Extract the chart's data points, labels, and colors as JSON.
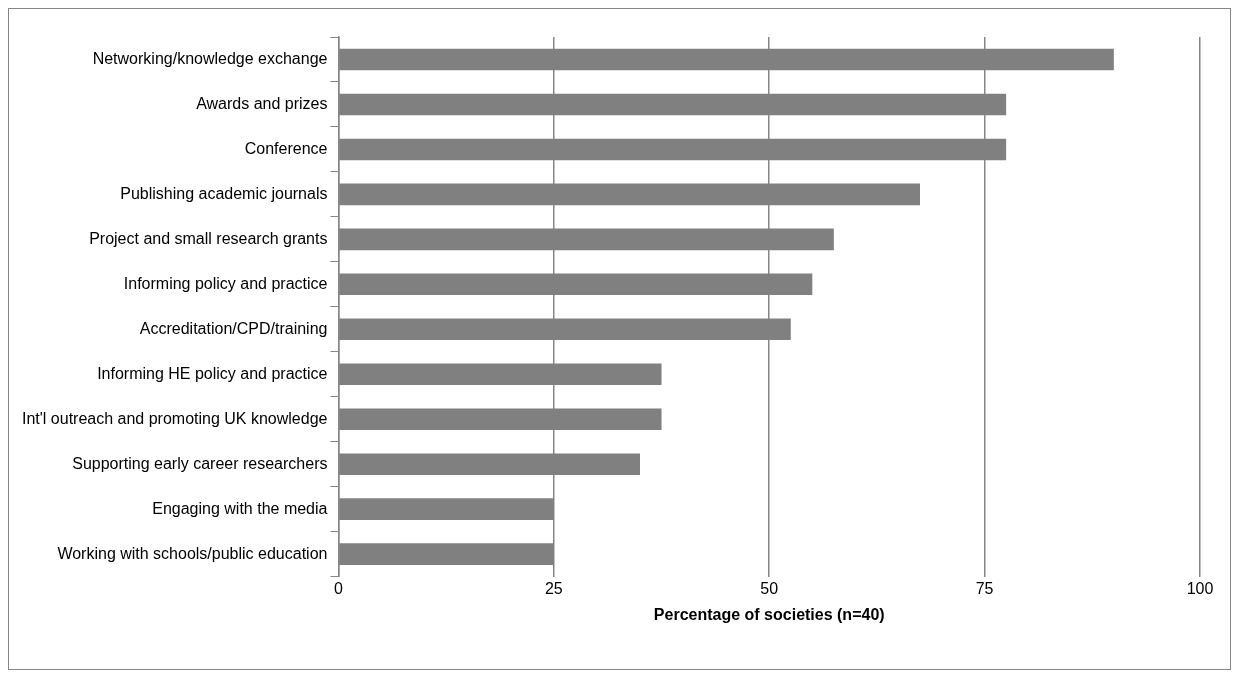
{
  "chart_data": {
    "type": "bar",
    "orientation": "horizontal",
    "categories": [
      "Networking/knowledge exchange",
      "Awards and prizes",
      "Conference",
      "Publishing academic journals",
      "Project and small research grants",
      "Informing policy and practice",
      "Accreditation/CPD/training",
      "Informing HE policy and practice",
      "Int'l outreach and promoting UK knowledge",
      "Supporting early career researchers",
      "Engaging with the media",
      "Working with schools/public education"
    ],
    "values": [
      90,
      77.5,
      77.5,
      67.5,
      57.5,
      55,
      52.5,
      37.5,
      37.5,
      35,
      25,
      25
    ],
    "color": "#808080",
    "xlabel": "Percentage of societies (n=40)",
    "xlim": [
      0,
      100
    ],
    "xticks": [
      0,
      25,
      50,
      75,
      100
    ],
    "grid": "x",
    "legend": false
  }
}
